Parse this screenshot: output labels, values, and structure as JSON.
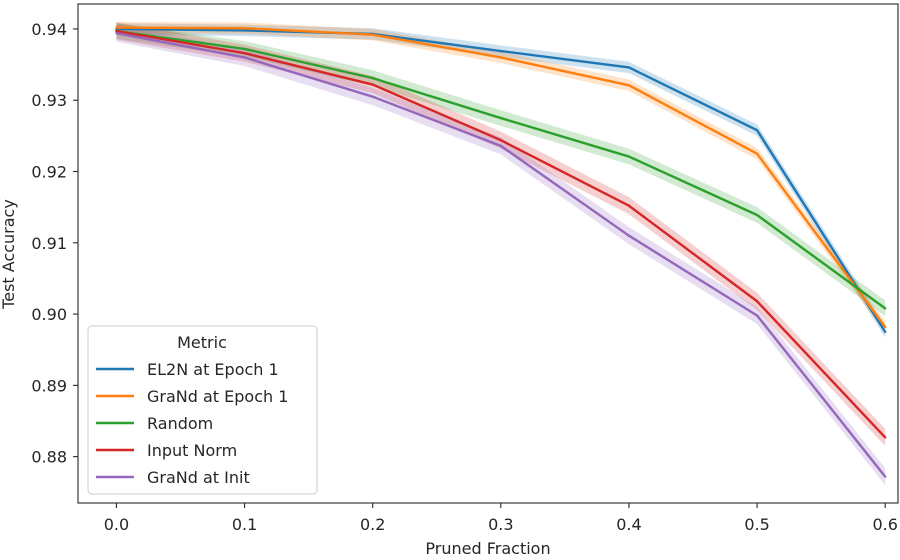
{
  "chart_data": {
    "type": "line",
    "title": "",
    "xlabel": "Pruned Fraction",
    "ylabel": "Test Accuracy",
    "x": [
      0.0,
      0.1,
      0.2,
      0.3,
      0.4,
      0.5,
      0.6
    ],
    "xticks": [
      "0.0",
      "0.1",
      "0.2",
      "0.3",
      "0.4",
      "0.5",
      "0.6"
    ],
    "yticks": [
      "0.88",
      "0.89",
      "0.90",
      "0.91",
      "0.92",
      "0.93",
      "0.94"
    ],
    "ytick_values": [
      0.88,
      0.89,
      0.9,
      0.91,
      0.92,
      0.93,
      0.94
    ],
    "xlim": [
      -0.03,
      0.61
    ],
    "ylim": [
      0.8735,
      0.9435
    ],
    "grid": false,
    "legend": {
      "title": "Metric",
      "placement": "lower-left"
    },
    "series": [
      {
        "name": "EL2N at Epoch 1",
        "color": "#1f77b4",
        "values": [
          0.94,
          0.9398,
          0.9393,
          0.9369,
          0.9346,
          0.9258,
          0.8975
        ],
        "band": 0.0008
      },
      {
        "name": "GraNd at Epoch 1",
        "color": "#ff7f0e",
        "values": [
          0.9402,
          0.9401,
          0.9392,
          0.936,
          0.9321,
          0.9225,
          0.8982
        ],
        "band": 0.0008
      },
      {
        "name": "Random",
        "color": "#2ca02c",
        "values": [
          0.9397,
          0.9372,
          0.9331,
          0.9275,
          0.9221,
          0.9139,
          0.9008
        ],
        "band": 0.0011
      },
      {
        "name": "Input Norm",
        "color": "#d62728",
        "values": [
          0.9397,
          0.9366,
          0.9322,
          0.9244,
          0.9152,
          0.9018,
          0.8827
        ],
        "band": 0.0012
      },
      {
        "name": "GraNd at Init",
        "color": "#9467bd",
        "values": [
          0.9394,
          0.936,
          0.9305,
          0.9236,
          0.911,
          0.8998,
          0.8772
        ],
        "band": 0.0012
      }
    ]
  }
}
